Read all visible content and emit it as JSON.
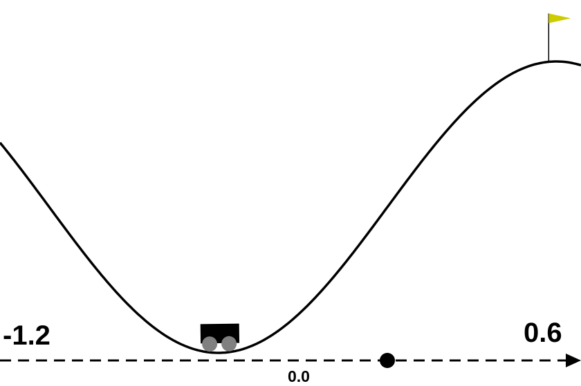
{
  "environment": {
    "position_min_label": "-1.2",
    "position_max_label": "0.6",
    "origin_label": "0.0",
    "position_min": -1.2,
    "position_max": 0.6,
    "origin": 0.0
  },
  "car": {
    "position": -0.52,
    "body_color": "#000000",
    "wheel_color": "#808080"
  },
  "goal": {
    "position": 0.5,
    "flag_color": "#cccc00"
  },
  "colors": {
    "track": "#000000",
    "axis": "#000000",
    "background": "#ffffff"
  }
}
